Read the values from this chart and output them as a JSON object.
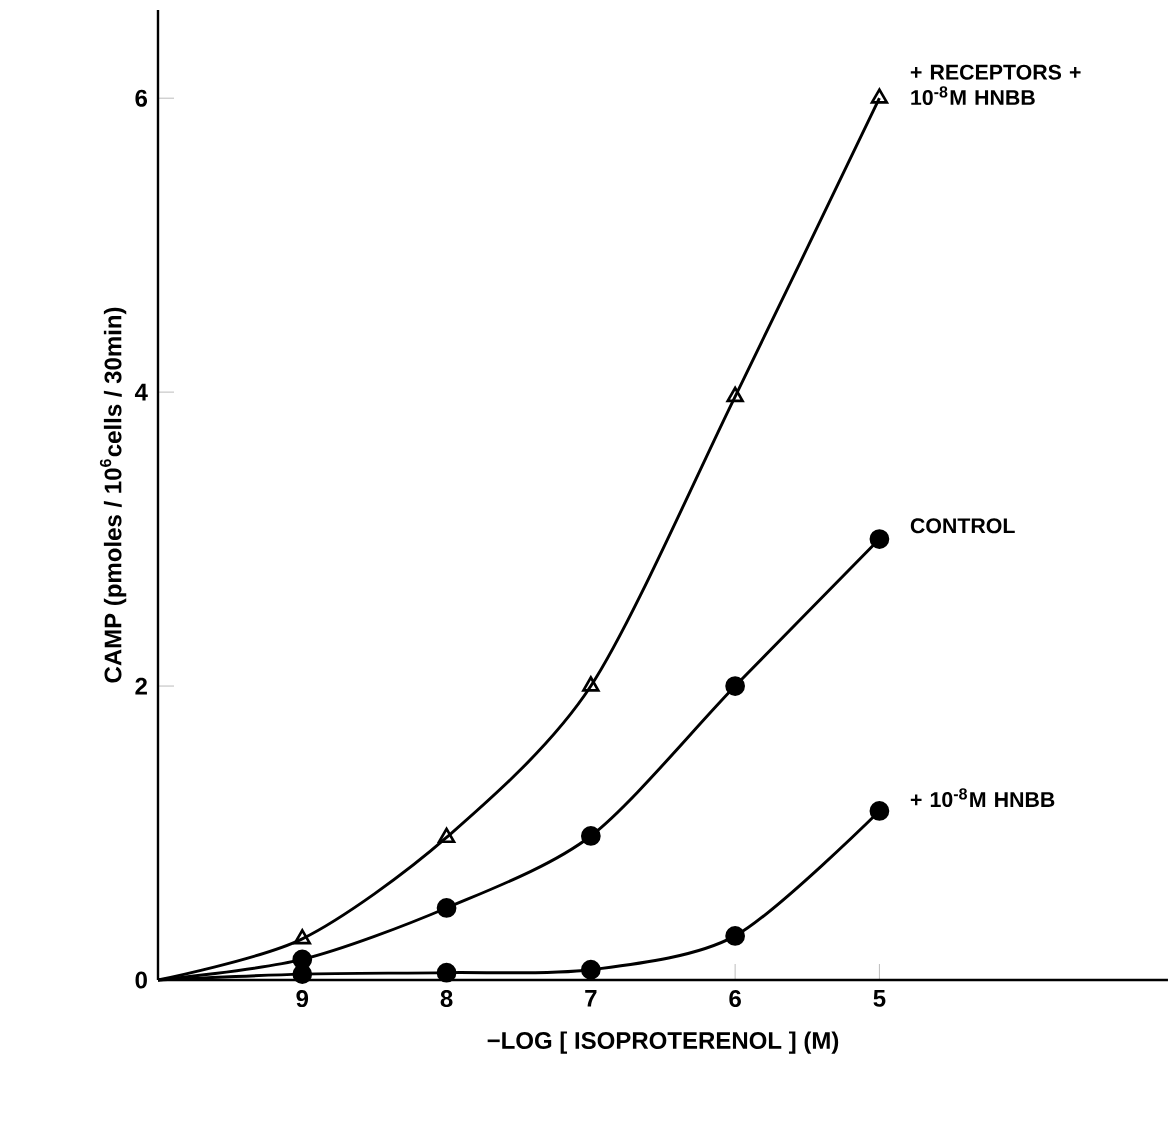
{
  "chart_data": {
    "type": "scatter",
    "xlabel": "−LOG [ ISOPROTERENOL ] (M)",
    "ylabel": "CAMP (pmoles / 10$^{6}$cells / 30min)",
    "xlim": [
      10,
      3
    ],
    "xticks": [
      9,
      8,
      7,
      6,
      5
    ],
    "ylim": [
      0,
      6.6
    ],
    "yticks": [
      0,
      2,
      4,
      6
    ],
    "series": [
      {
        "type": "line",
        "color": "#000000",
        "marker": "none",
        "x": [
          10,
          9,
          8,
          7,
          6,
          5
        ],
        "values": [
          0,
          0.28,
          0.97,
          2.0,
          3.97,
          6.0
        ]
      },
      {
        "type": "line",
        "color": "#000000",
        "marker": "none",
        "x": [
          10,
          9,
          8,
          7,
          6,
          5
        ],
        "values": [
          0,
          0.14,
          0.49,
          0.98,
          2.0,
          3.0
        ]
      },
      {
        "type": "line",
        "color": "#000000",
        "marker": "none",
        "x": [
          10,
          9,
          8,
          7,
          6,
          5
        ],
        "values": [
          0,
          0.04,
          0.05,
          0.07,
          0.3,
          1.15
        ]
      },
      {
        "name": "+ RECEPTORS + 10$^{-8}$M HNBB",
        "color": "#000000",
        "marker": "triangle",
        "x": [
          9,
          8,
          7,
          6,
          5
        ],
        "values": [
          0.28,
          0.97,
          2.0,
          3.97,
          6.0
        ]
      },
      {
        "name": "CONTROL",
        "color": "#000000",
        "marker": "circle",
        "x": [
          9,
          8,
          7,
          6,
          5
        ],
        "values": [
          0.14,
          0.49,
          0.98,
          2.0,
          3.0
        ]
      },
      {
        "name": "+ 10$^{-8}$M HNBB",
        "color": "#000000",
        "marker": "circle",
        "x": [
          9,
          8,
          7,
          6,
          5
        ],
        "values": [
          0.04,
          0.05,
          0.07,
          0.3,
          1.15
        ]
      }
    ]
  }
}
